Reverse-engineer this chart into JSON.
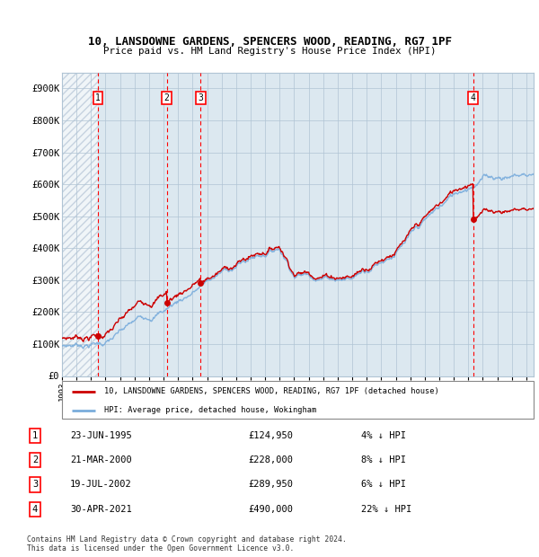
{
  "title": "10, LANSDOWNE GARDENS, SPENCERS WOOD, READING, RG7 1PF",
  "subtitle": "Price paid vs. HM Land Registry's House Price Index (HPI)",
  "ylim": [
    0,
    950000
  ],
  "yticks": [
    0,
    100000,
    200000,
    300000,
    400000,
    500000,
    600000,
    700000,
    800000,
    900000
  ],
  "ytick_labels": [
    "£0",
    "£100K",
    "£200K",
    "£300K",
    "£400K",
    "£500K",
    "£600K",
    "£700K",
    "£800K",
    "£900K"
  ],
  "xlim_start": 1993.0,
  "xlim_end": 2025.5,
  "hpi_color": "#7aaddc",
  "price_color": "#cc0000",
  "background_color": "#dce8f0",
  "sale_dates": [
    1995.47,
    2000.22,
    2002.55,
    2021.33
  ],
  "sale_prices": [
    124950,
    228000,
    289950,
    490000
  ],
  "sale_labels": [
    "1",
    "2",
    "3",
    "4"
  ],
  "legend_price_label": "10, LANSDOWNE GARDENS, SPENCERS WOOD, READING, RG7 1PF (detached house)",
  "legend_hpi_label": "HPI: Average price, detached house, Wokingham",
  "table_rows": [
    {
      "num": "1",
      "date": "23-JUN-1995",
      "price": "£124,950",
      "hpi": "4% ↓ HPI"
    },
    {
      "num": "2",
      "date": "21-MAR-2000",
      "price": "£228,000",
      "hpi": "8% ↓ HPI"
    },
    {
      "num": "3",
      "date": "19-JUL-2002",
      "price": "£289,950",
      "hpi": "6% ↓ HPI"
    },
    {
      "num": "4",
      "date": "30-APR-2021",
      "price": "£490,000",
      "hpi": "22% ↓ HPI"
    }
  ],
  "footnote": "Contains HM Land Registry data © Crown copyright and database right 2024.\nThis data is licensed under the Open Government Licence v3.0."
}
